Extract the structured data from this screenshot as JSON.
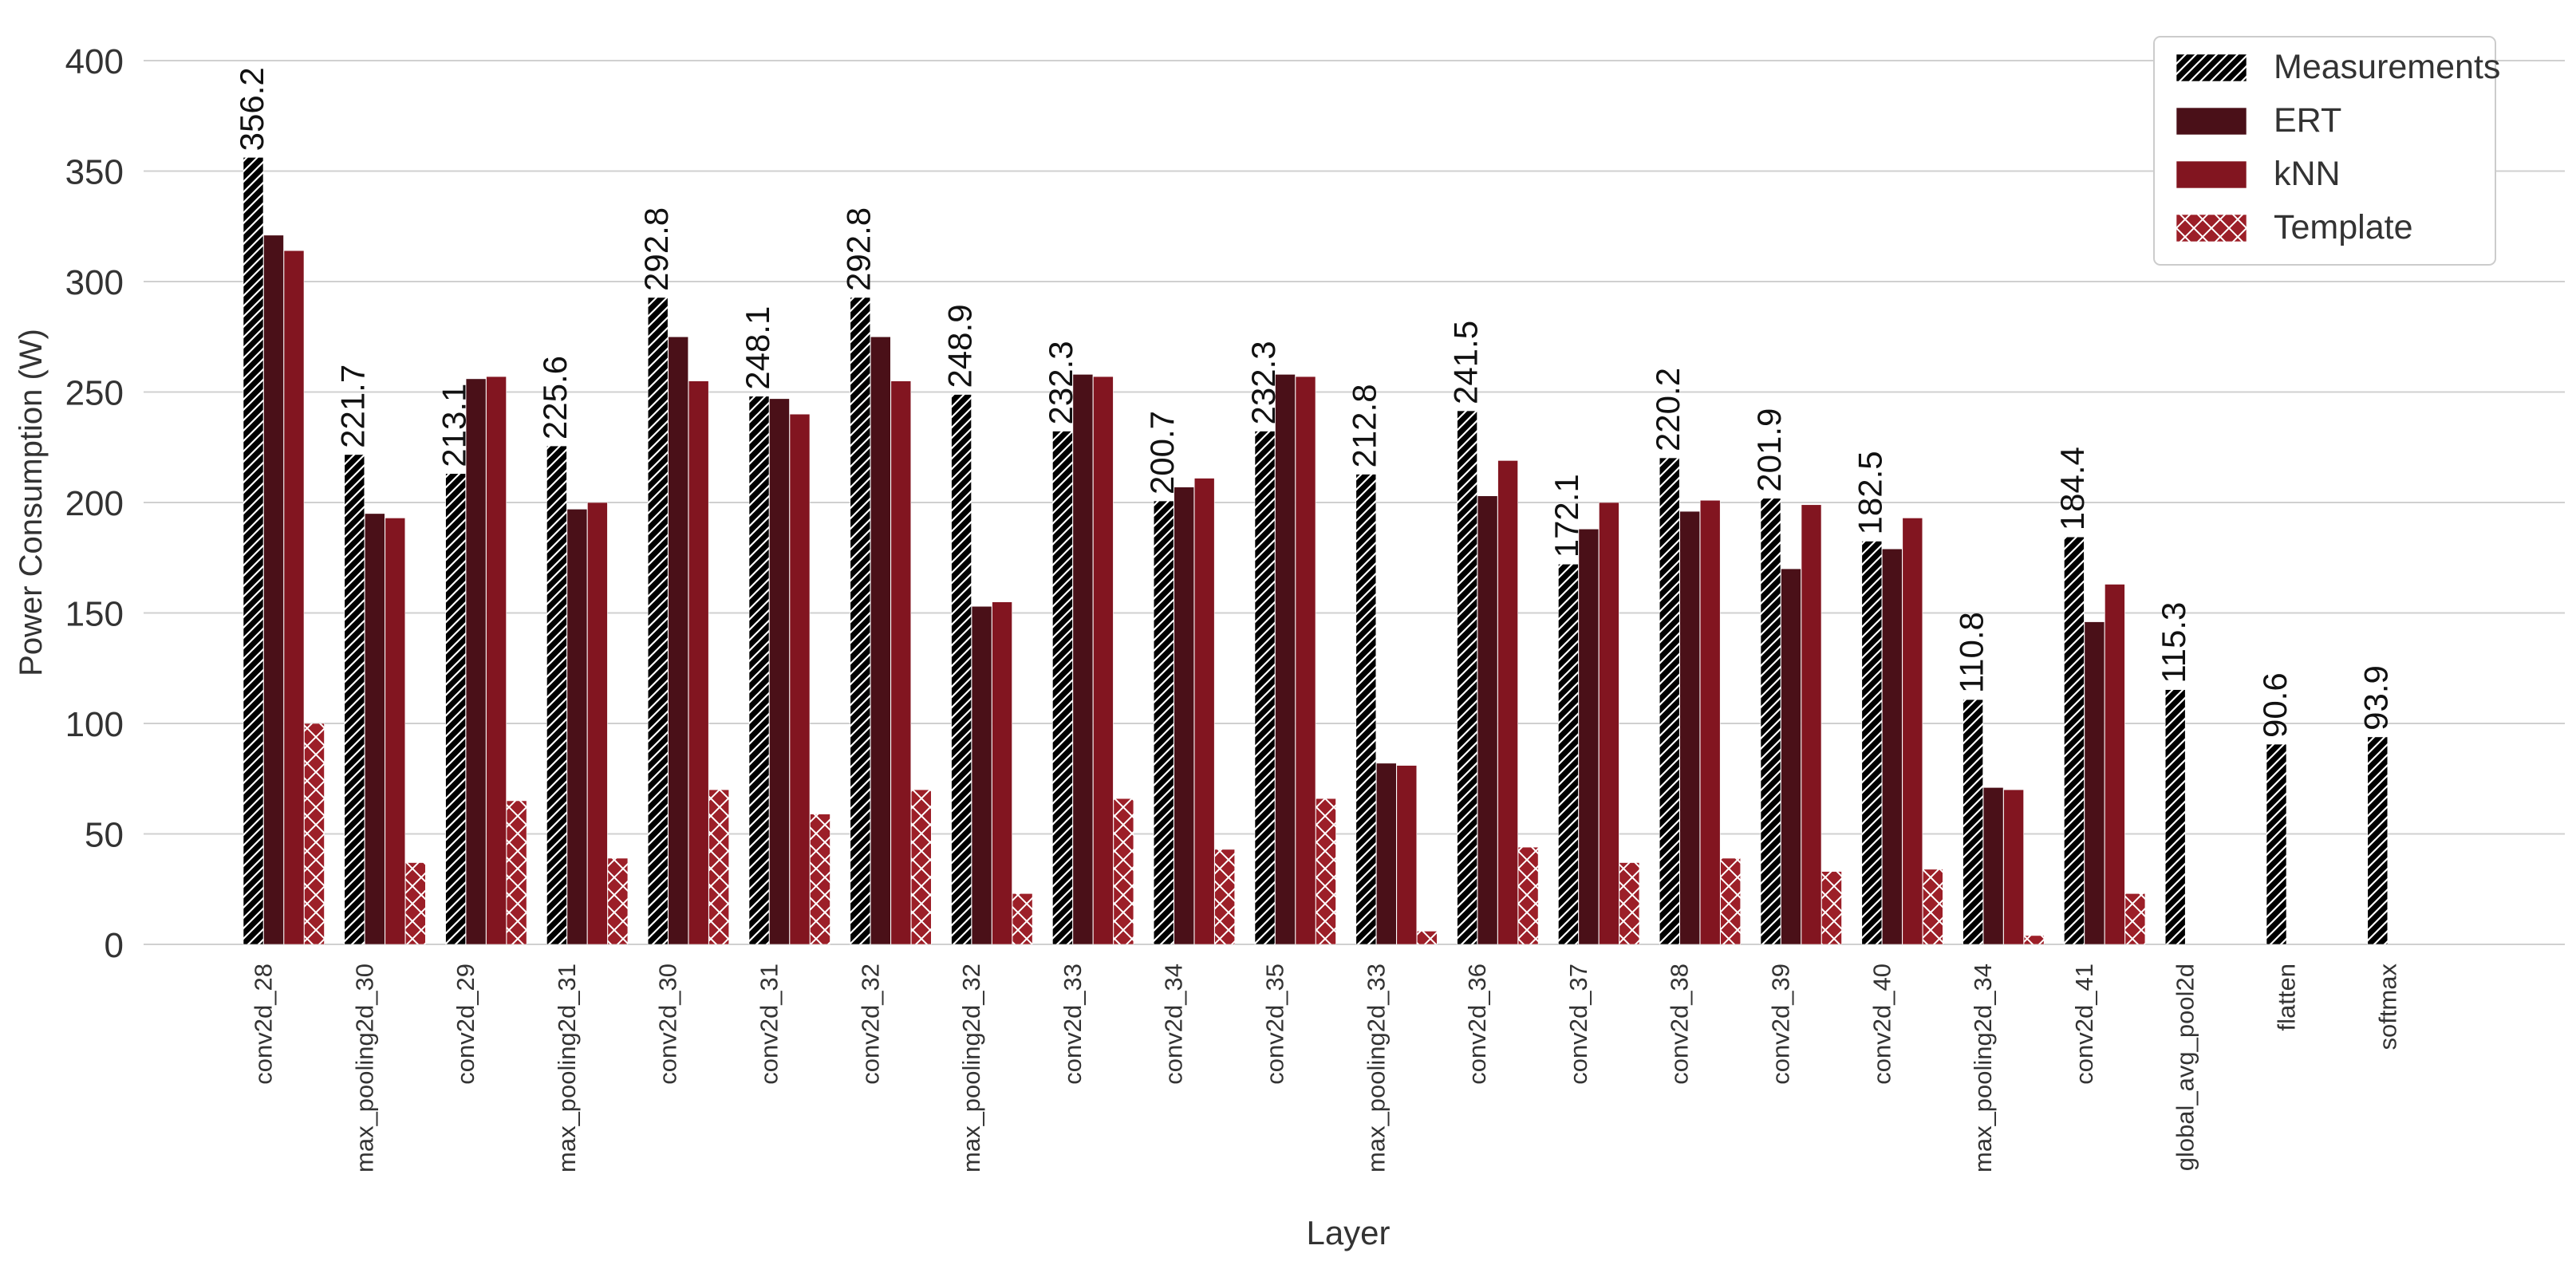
{
  "chart_data": {
    "type": "bar",
    "xlabel": "Layer",
    "ylabel": "Power Consumption (W)",
    "ylim": [
      0,
      400
    ],
    "yticks": [
      0,
      50,
      100,
      150,
      200,
      250,
      300,
      350,
      400
    ],
    "grid": "horizontal",
    "legend_position": "top-right",
    "categories": [
      "conv2d_28",
      "max_pooling2d_30",
      "conv2d_29",
      "max_pooling2d_31",
      "conv2d_30",
      "conv2d_31",
      "conv2d_32",
      "max_pooling2d_32",
      "conv2d_33",
      "conv2d_34",
      "conv2d_35",
      "max_pooling2d_33",
      "conv2d_36",
      "conv2d_37",
      "conv2d_38",
      "conv2d_39",
      "conv2d_40",
      "max_pooling2d_34",
      "conv2d_41",
      "global_avg_pool2d",
      "flatten",
      "softmax"
    ],
    "series": [
      {
        "name": "Measurements",
        "color": "#000000",
        "pattern": "diagonal-hatch",
        "values": [
          356.2,
          221.7,
          213.1,
          225.6,
          292.8,
          248.1,
          292.8,
          248.9,
          232.3,
          200.7,
          232.3,
          212.8,
          241.5,
          172.1,
          220.2,
          201.9,
          182.5,
          110.8,
          184.4,
          115.3,
          90.6,
          93.9
        ]
      },
      {
        "name": "ERT",
        "color": "#4a1018",
        "pattern": "solid",
        "values": [
          321,
          195,
          256,
          197,
          275,
          247,
          275,
          153,
          258,
          207,
          258,
          82,
          203,
          188,
          196,
          170,
          179,
          71,
          146,
          null,
          null,
          null
        ]
      },
      {
        "name": "kNN",
        "color": "#821520",
        "pattern": "solid",
        "values": [
          314,
          193,
          257,
          200,
          255,
          240,
          255,
          155,
          257,
          211,
          257,
          81,
          219,
          200,
          201,
          199,
          193,
          70,
          163,
          null,
          null,
          null
        ]
      },
      {
        "name": "Template",
        "color": "#9c1f28",
        "pattern": "cross-hatch",
        "values": [
          100,
          37,
          65,
          39,
          70,
          59,
          70,
          23,
          66,
          43,
          66,
          6,
          44,
          37,
          39,
          33,
          34,
          4,
          23,
          null,
          null,
          null
        ]
      }
    ],
    "data_labels": [
      "356.2",
      "221.7",
      "213.1",
      "225.6",
      "292.8",
      "248.1",
      "292.8",
      "248.9",
      "232.3",
      "200.7",
      "232.3",
      "212.8",
      "241.5",
      "172.1",
      "220.2",
      "201.9",
      "182.5",
      "110.8",
      "184.4",
      "115.3",
      "90.6",
      "93.9"
    ]
  }
}
